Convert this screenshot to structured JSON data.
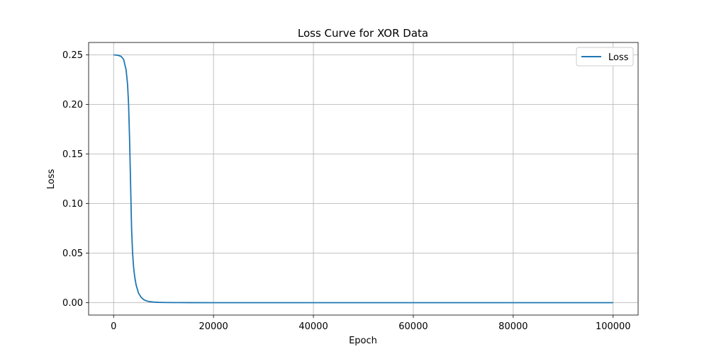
{
  "chart_data": {
    "type": "line",
    "title": "Loss Curve for XOR Data",
    "xlabel": "Epoch",
    "ylabel": "Loss",
    "xlim": [
      -5000,
      105000
    ],
    "ylim": [
      -0.0125,
      0.2625
    ],
    "xticks": [
      0,
      20000,
      40000,
      60000,
      80000,
      100000
    ],
    "xtick_labels": [
      "0",
      "20000",
      "40000",
      "60000",
      "80000",
      "100000"
    ],
    "yticks": [
      0.0,
      0.05,
      0.1,
      0.15,
      0.2,
      0.25
    ],
    "ytick_labels": [
      "0.00",
      "0.05",
      "0.10",
      "0.15",
      "0.20",
      "0.25"
    ],
    "grid": true,
    "legend_position": "top-right",
    "series": [
      {
        "name": "Loss",
        "color": "#1f77b4",
        "x": [
          0,
          500,
          1000,
          1500,
          2000,
          2500,
          2800,
          3000,
          3200,
          3400,
          3600,
          3800,
          4000,
          4200,
          4500,
          5000,
          5500,
          6000,
          6500,
          7000,
          8000,
          9000,
          10000,
          12000,
          15000,
          20000,
          30000,
          50000,
          70000,
          100000
        ],
        "y": [
          0.25,
          0.2498,
          0.2494,
          0.2485,
          0.2455,
          0.235,
          0.22,
          0.2,
          0.165,
          0.12,
          0.075,
          0.05,
          0.036,
          0.027,
          0.018,
          0.0095,
          0.0055,
          0.0032,
          0.0019,
          0.0012,
          0.0006,
          0.0003,
          0.0002,
          0.0001,
          5e-05,
          2e-05,
          1e-05,
          0.0,
          0.0,
          0.0
        ]
      }
    ]
  }
}
